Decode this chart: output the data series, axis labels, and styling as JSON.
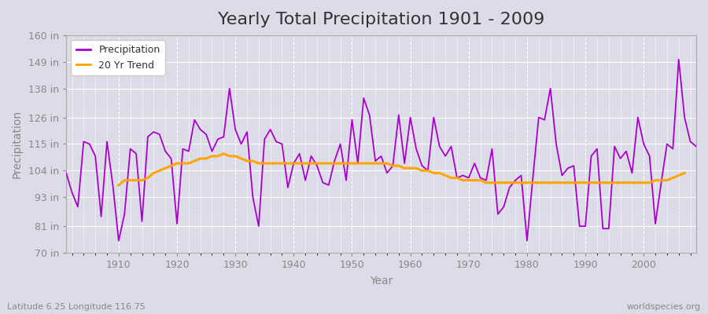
{
  "title": "Yearly Total Precipitation 1901 - 2009",
  "xlabel": "Year",
  "ylabel": "Precipitation",
  "subtitle": "Latitude 6.25 Longitude 116.75",
  "watermark": "worldspecies.org",
  "years": [
    1901,
    1902,
    1903,
    1904,
    1905,
    1906,
    1907,
    1908,
    1909,
    1910,
    1911,
    1912,
    1913,
    1914,
    1915,
    1916,
    1917,
    1918,
    1919,
    1920,
    1921,
    1922,
    1923,
    1924,
    1925,
    1926,
    1927,
    1928,
    1929,
    1930,
    1931,
    1932,
    1933,
    1934,
    1935,
    1936,
    1937,
    1938,
    1939,
    1940,
    1941,
    1942,
    1943,
    1944,
    1945,
    1946,
    1947,
    1948,
    1949,
    1950,
    1951,
    1952,
    1953,
    1954,
    1955,
    1956,
    1957,
    1958,
    1959,
    1960,
    1961,
    1962,
    1963,
    1964,
    1965,
    1966,
    1967,
    1968,
    1969,
    1970,
    1971,
    1972,
    1973,
    1974,
    1975,
    1976,
    1977,
    1978,
    1979,
    1980,
    1981,
    1982,
    1983,
    1984,
    1985,
    1986,
    1987,
    1988,
    1989,
    1990,
    1991,
    1992,
    1993,
    1994,
    1995,
    1996,
    1997,
    1998,
    1999,
    2000,
    2001,
    2002,
    2003,
    2004,
    2005,
    2006,
    2007,
    2008,
    2009
  ],
  "precip": [
    103,
    95,
    89,
    116,
    115,
    110,
    85,
    116,
    98,
    75,
    86,
    113,
    111,
    83,
    118,
    120,
    119,
    112,
    109,
    82,
    113,
    112,
    125,
    121,
    119,
    112,
    117,
    118,
    138,
    121,
    115,
    120,
    93,
    81,
    117,
    121,
    116,
    115,
    97,
    107,
    111,
    100,
    110,
    106,
    99,
    98,
    108,
    115,
    100,
    125,
    107,
    134,
    127,
    108,
    110,
    103,
    106,
    127,
    107,
    126,
    113,
    106,
    104,
    126,
    114,
    110,
    114,
    101,
    102,
    101,
    107,
    101,
    100,
    113,
    86,
    89,
    97,
    100,
    102,
    75,
    101,
    126,
    125,
    138,
    115,
    102,
    105,
    106,
    81,
    81,
    110,
    113,
    80,
    80,
    114,
    109,
    112,
    103,
    126,
    115,
    110,
    82,
    99,
    115,
    113,
    150,
    126,
    116,
    114
  ],
  "trend": [
    null,
    null,
    null,
    null,
    null,
    null,
    null,
    null,
    null,
    98,
    100,
    100,
    100,
    100,
    101,
    103,
    104,
    105,
    106,
    107,
    107,
    107,
    108,
    109,
    109,
    110,
    110,
    111,
    110,
    110,
    109,
    108,
    108,
    107,
    107,
    107,
    107,
    107,
    107,
    107,
    107,
    107,
    107,
    107,
    107,
    107,
    107,
    107,
    107,
    107,
    107,
    107,
    107,
    107,
    107,
    107,
    106,
    106,
    105,
    105,
    105,
    104,
    104,
    103,
    103,
    102,
    101,
    101,
    100,
    100,
    100,
    100,
    99,
    99,
    99,
    99,
    99,
    99,
    99,
    99,
    99,
    99,
    99,
    99,
    99,
    99,
    99,
    99,
    99,
    99,
    99,
    99,
    99,
    99,
    99,
    99,
    99,
    99,
    99,
    99,
    99,
    100,
    100,
    100,
    101,
    102,
    103,
    null,
    null,
    null
  ],
  "precip_color": "#AA00CC",
  "trend_color": "#FFA500",
  "bg_color": "#DCDCE8",
  "plot_bg_color": "#DCDCE8",
  "grid_color": "#FFFFFF",
  "spine_color": "#AAAAAA",
  "tick_color": "#888888",
  "title_color": "#333333",
  "label_color": "#888888",
  "ylim": [
    70,
    160
  ],
  "xlim": [
    1901,
    2009
  ],
  "yticks": [
    70,
    81,
    93,
    104,
    115,
    126,
    138,
    149,
    160
  ],
  "ytick_labels": [
    "70 in",
    "81 in",
    "93 in",
    "104 in",
    "115 in",
    "126 in",
    "138 in",
    "149 in",
    "160 in"
  ],
  "xticks": [
    1910,
    1920,
    1930,
    1940,
    1950,
    1960,
    1970,
    1980,
    1990,
    2000
  ],
  "title_fontsize": 16,
  "axis_label_fontsize": 10,
  "tick_fontsize": 9,
  "legend_fontsize": 9,
  "annot_fontsize": 8
}
